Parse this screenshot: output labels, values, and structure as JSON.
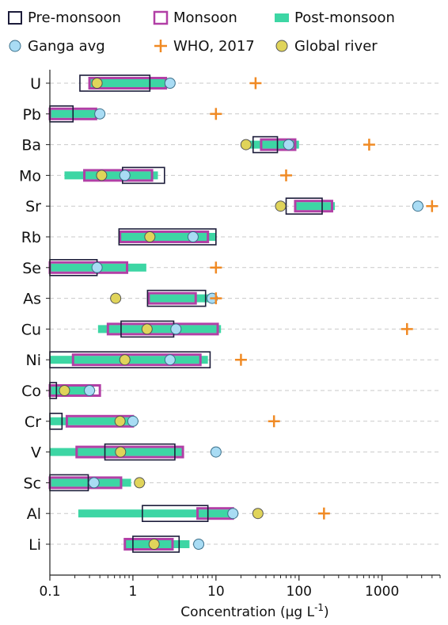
{
  "chart_data": {
    "type": "range-bar",
    "xscale": "log",
    "xlim": [
      0.1,
      5000
    ],
    "xlabel_main": "Concentration (µg L",
    "xlabel_sup": "-1",
    "xlabel_close": ")",
    "xticks": [
      0.1,
      1,
      10,
      100,
      1000
    ],
    "xtick_labels": [
      "0.1",
      "1",
      "10",
      "100",
      "1000"
    ],
    "grid": "horizontal-dashed",
    "legend_position": "top",
    "legend": [
      {
        "key": "pre",
        "label": "Pre-monsoon",
        "color": "#1c1c3a"
      },
      {
        "key": "mon",
        "label": "Monsoon",
        "color": "#b23fa6"
      },
      {
        "key": "post",
        "label": "Post-monsoon",
        "color": "#3dd6a4"
      },
      {
        "key": "ganga",
        "label": "Ganga avg",
        "color": "#a9dcf4"
      },
      {
        "key": "who",
        "label": "WHO, 2017",
        "color": "#f08a24"
      },
      {
        "key": "global",
        "label": "Global river",
        "color": "#e0d45a"
      }
    ],
    "elements": [
      {
        "name": "U",
        "pre": [
          0.23,
          1.6
        ],
        "mon": [
          0.3,
          2.5
        ],
        "post": [
          0.3,
          2.9
        ],
        "ganga": 2.8,
        "who": 30,
        "global": 0.37
      },
      {
        "name": "Pb",
        "pre": [
          0.1,
          0.19
        ],
        "mon": [
          0.1,
          0.36
        ],
        "post": [
          0.1,
          0.36
        ],
        "ganga": 0.4,
        "who": 10,
        "global": null
      },
      {
        "name": "Ba",
        "pre": [
          28,
          55
        ],
        "mon": [
          35,
          90
        ],
        "post": [
          23,
          100
        ],
        "ganga": 75,
        "who": 700,
        "global": 23
      },
      {
        "name": "Mo",
        "pre": [
          0.75,
          2.4
        ],
        "mon": [
          0.26,
          1.7
        ],
        "post": [
          0.15,
          2.0
        ],
        "ganga": 0.8,
        "who": 70,
        "global": 0.42
      },
      {
        "name": "Sr",
        "pre": [
          70,
          190
        ],
        "mon": [
          90,
          250
        ],
        "post": [
          90,
          270
        ],
        "ganga": 2700,
        "who": 4000,
        "global": 60
      },
      {
        "name": "Rb",
        "pre": [
          0.68,
          10
        ],
        "mon": [
          0.7,
          8
        ],
        "post": [
          0.7,
          10
        ],
        "ganga": 5.3,
        "who": null,
        "global": 1.6
      },
      {
        "name": "Se",
        "pre": [
          0.1,
          0.37
        ],
        "mon": [
          0.1,
          0.85
        ],
        "post": [
          0.1,
          1.45
        ],
        "ganga": 0.37,
        "who": 10,
        "global": null
      },
      {
        "name": "As",
        "pre": [
          1.5,
          7.5
        ],
        "mon": [
          1.55,
          5.7
        ],
        "post": [
          1.55,
          8.5
        ],
        "ganga": 9,
        "who": 10,
        "global": 0.62
      },
      {
        "name": "Cu",
        "pre": [
          0.72,
          3.1
        ],
        "mon": [
          0.5,
          10.5
        ],
        "post": [
          0.38,
          11.5
        ],
        "ganga": 3.3,
        "who": 2000,
        "global": 1.48
      },
      {
        "name": "Ni",
        "pre": [
          0.1,
          8.5
        ],
        "mon": [
          0.19,
          6.5
        ],
        "post": [
          0.1,
          8.0
        ],
        "ganga": 2.8,
        "who": 20,
        "global": 0.8
      },
      {
        "name": "Co",
        "pre": [
          0.1,
          0.12
        ],
        "mon": [
          0.1,
          0.4
        ],
        "post": [
          0.1,
          0.32
        ],
        "ganga": 0.3,
        "who": null,
        "global": 0.15
      },
      {
        "name": "Cr",
        "pre": [
          0.1,
          0.14
        ],
        "mon": [
          0.16,
          1.0
        ],
        "post": [
          0.1,
          1.0
        ],
        "ganga": 1.0,
        "who": 50,
        "global": 0.7
      },
      {
        "name": "V",
        "pre": [
          0.46,
          3.2
        ],
        "mon": [
          0.21,
          4.0
        ],
        "post": [
          0.1,
          4.0
        ],
        "ganga": 10,
        "who": null,
        "global": 0.71
      },
      {
        "name": "Sc",
        "pre": [
          0.1,
          0.29
        ],
        "mon": [
          0.1,
          0.72
        ],
        "post": [
          0.1,
          0.95
        ],
        "ganga": 0.34,
        "who": null,
        "global": 1.2
      },
      {
        "name": "Al",
        "pre": [
          1.3,
          8.0
        ],
        "mon": [
          6.0,
          16
        ],
        "post": [
          0.22,
          16
        ],
        "ganga": 16,
        "who": 200,
        "global": 32
      },
      {
        "name": "Li",
        "pre": [
          1.0,
          3.6
        ],
        "mon": [
          0.8,
          3.0
        ],
        "post": [
          0.8,
          4.8
        ],
        "ganga": 6.2,
        "who": null,
        "global": 1.8
      }
    ]
  }
}
